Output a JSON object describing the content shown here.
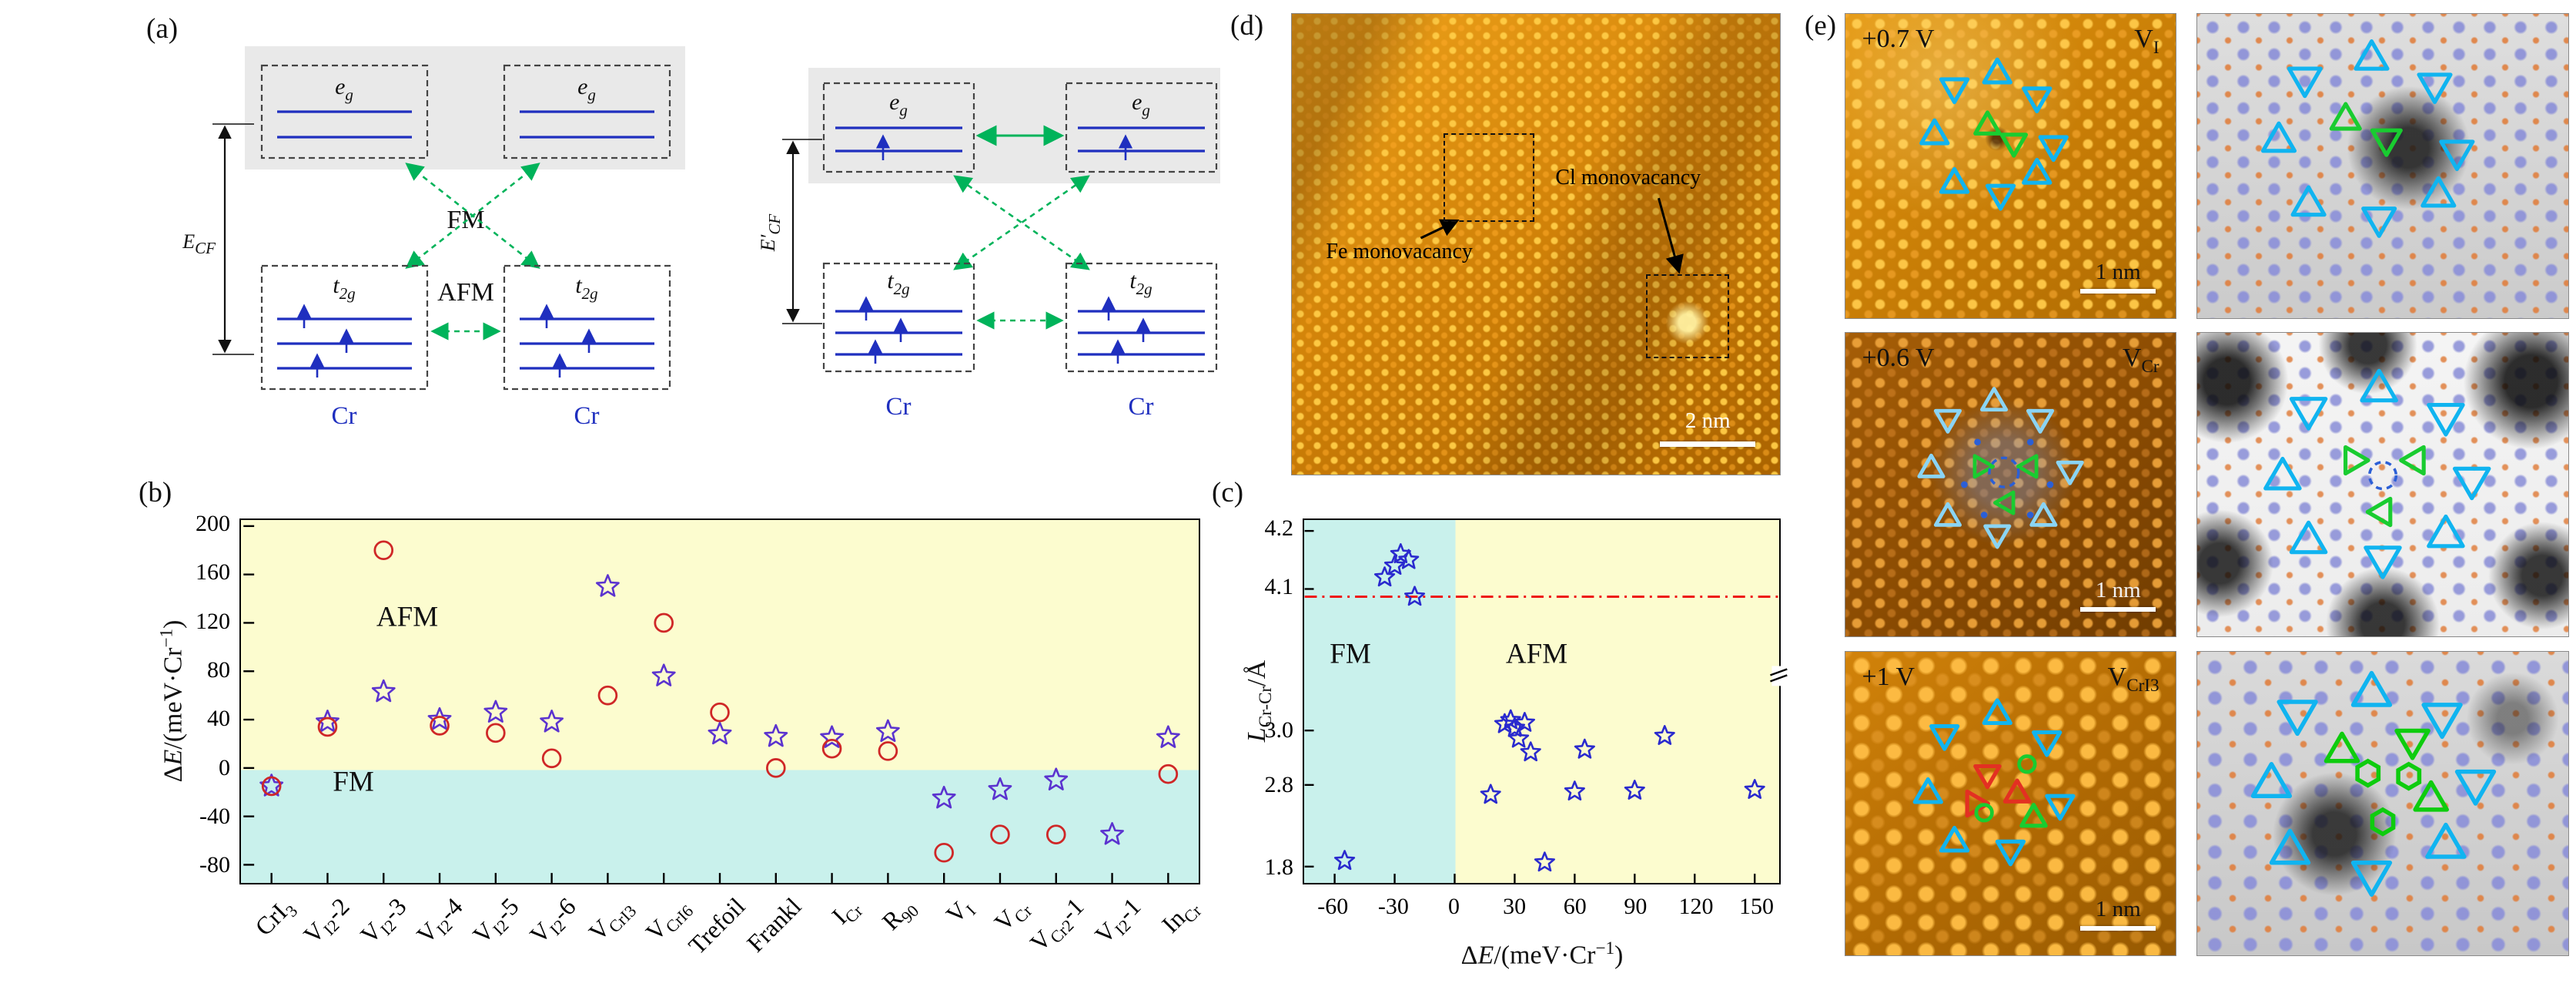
{
  "panel_labels": {
    "a": "(a)",
    "b": "(b)",
    "c": "(c)",
    "d": "(d)",
    "e": "(e)"
  },
  "panels": {
    "a": {
      "eg_base": "e",
      "eg_sub": "g",
      "t2g_base": "t",
      "t2g_sub": "2g",
      "ecf_base": "E",
      "ecf_sub": "CF",
      "ecf2_base": "E′",
      "ecf2_sub": "CF",
      "fm": "FM",
      "afm": "AFM",
      "cr": "Cr"
    },
    "d": {
      "fe_annotation": "Fe monovacancy",
      "cl_annotation": "Cl monovacancy",
      "scale_bar": "2 nm"
    },
    "e": {
      "rows": [
        {
          "bias": "+0.7 V",
          "defect_rich": "V~I~",
          "scale_label": "1 nm",
          "stm_markers": [
            {
              "color": "#10b4f0",
              "size": 5,
              "stroke": 1.3,
              "items": [
                [
                  "td",
                  33,
                  24
                ],
                [
                  "tu",
                  46,
                  20
                ],
                [
                  "td",
                  58,
                  27
                ],
                [
                  "tu",
                  27,
                  40
                ],
                [
                  "td",
                  63,
                  43
                ],
                [
                  "tu",
                  33,
                  56
                ],
                [
                  "td",
                  47,
                  59
                ],
                [
                  "tu",
                  58,
                  53
                ]
              ]
            },
            {
              "color": "#19cc30",
              "size": 4.6,
              "stroke": 1.3,
              "items": [
                [
                  "tu",
                  43,
                  37
                ],
                [
                  "td",
                  51,
                  42
                ]
              ]
            }
          ],
          "sim_markers": [
            {
              "color": "#10b4f0",
              "size": 6,
              "stroke": 1.3,
              "items": [
                [
                  "td",
                  29,
                  21
                ],
                [
                  "tu",
                  47,
                  15
                ],
                [
                  "td",
                  64,
                  23
                ],
                [
                  "tu",
                  22,
                  42
                ],
                [
                  "td",
                  70,
                  45
                ],
                [
                  "tu",
                  30,
                  63
                ],
                [
                  "td",
                  49,
                  67
                ],
                [
                  "tu",
                  65,
                  60
                ]
              ]
            },
            {
              "color": "#19cc30",
              "size": 5.4,
              "stroke": 1.3,
              "items": [
                [
                  "tu",
                  40,
                  35
                ],
                [
                  "td",
                  51,
                  41
                ]
              ]
            }
          ]
        },
        {
          "bias": "+0.6 V",
          "defect_rich": "V~Cr~",
          "scale_label": "1 nm",
          "stm_markers": [
            {
              "color": "#8ad4f4",
              "size": 4.6,
              "stroke": 1.2,
              "items": [
                [
                  "td",
                  31,
                  28
                ],
                [
                  "tu",
                  45,
                  23
                ],
                [
                  "td",
                  59,
                  28
                ],
                [
                  "tu",
                  26,
                  45
                ],
                [
                  "td",
                  68,
                  45
                ],
                [
                  "tu",
                  31,
                  61
                ],
                [
                  "td",
                  46,
                  66
                ],
                [
                  "tu",
                  60,
                  61
                ]
              ]
            },
            {
              "color": "#19cc30",
              "size": 4,
              "stroke": 1.2,
              "items": [
                [
                  "tr",
                  41,
                  44
                ],
                [
                  "tl",
                  56,
                  44
                ],
                [
                  "tl",
                  49,
                  56
                ]
              ]
            },
            {
              "color": "#2b5fd6",
              "size": 4.8,
              "stroke": 1.1,
              "items": [
                [
                  "dc",
                  48,
                  46
                ]
              ]
            },
            {
              "color": "#2b5fd6",
              "size": 1.1,
              "stroke": 1,
              "items": [
                [
                  "dot",
                  40,
                  36
                ],
                [
                  "dot",
                  56,
                  36
                ],
                [
                  "dot",
                  36,
                  50
                ],
                [
                  "dot",
                  62,
                  50
                ],
                [
                  "dot",
                  42,
                  60
                ],
                [
                  "dot",
                  56,
                  60
                ]
              ]
            }
          ],
          "sim_markers": [
            {
              "color": "#10b4f0",
              "size": 6.5,
              "stroke": 1.3,
              "items": [
                [
                  "td",
                  30,
                  25
                ],
                [
                  "tu",
                  49,
                  19
                ],
                [
                  "td",
                  67,
                  27
                ],
                [
                  "tu",
                  23,
                  48
                ],
                [
                  "td",
                  74,
                  48
                ],
                [
                  "tu",
                  30,
                  69
                ],
                [
                  "td",
                  50,
                  74
                ],
                [
                  "tu",
                  67,
                  67
                ]
              ]
            },
            {
              "color": "#19cc30",
              "size": 5,
              "stroke": 1.3,
              "items": [
                [
                  "tr",
                  42,
                  42
                ],
                [
                  "tl",
                  59,
                  42
                ],
                [
                  "tl",
                  50,
                  59
                ]
              ]
            },
            {
              "color": "#2b5fd6",
              "size": 4.4,
              "stroke": 1.1,
              "items": [
                [
                  "dc",
                  50,
                  47
                ]
              ]
            }
          ]
        },
        {
          "bias": "+1 V",
          "defect_rich": "V~CrI3~",
          "scale_label": "1 nm",
          "stm_markers": [
            {
              "color": "#10b4f0",
              "size": 5,
              "stroke": 1.3,
              "items": [
                [
                  "td",
                  30,
                  27
                ],
                [
                  "tu",
                  46,
                  21
                ],
                [
                  "td",
                  61,
                  29
                ],
                [
                  "tu",
                  25,
                  47
                ],
                [
                  "td",
                  65,
                  50
                ],
                [
                  "tu",
                  33,
                  63
                ],
                [
                  "td",
                  50,
                  65
                ]
              ]
            },
            {
              "color": "#e33022",
              "size": 4.6,
              "stroke": 1.3,
              "items": [
                [
                  "td",
                  43,
                  40
                ],
                [
                  "tu",
                  52,
                  47
                ],
                [
                  "tr",
                  39,
                  50
                ]
              ]
            },
            {
              "color": "#19cc30",
              "size": 2.6,
              "stroke": 1.2,
              "items": [
                [
                  "c",
                  42,
                  53
                ],
                [
                  "c",
                  55,
                  37
                ]
              ]
            },
            {
              "color": "#19cc30",
              "size": 4.6,
              "stroke": 1.3,
              "items": [
                [
                  "tu",
                  57,
                  55
                ]
              ]
            }
          ],
          "sim_markers": [
            {
              "color": "#10b4f0",
              "size": 7,
              "stroke": 1.4,
              "items": [
                [
                  "td",
                  27,
                  20
                ],
                [
                  "tu",
                  47,
                  14
                ],
                [
                  "td",
                  66,
                  21
                ],
                [
                  "tu",
                  20,
                  44
                ],
                [
                  "td",
                  75,
                  43
                ],
                [
                  "tu",
                  25,
                  66
                ],
                [
                  "td",
                  47,
                  73
                ],
                [
                  "tu",
                  67,
                  64
                ]
              ]
            },
            {
              "color": "#0ecc0e",
              "size": 6,
              "stroke": 1.4,
              "items": [
                [
                  "tu",
                  39,
                  33
                ],
                [
                  "td",
                  58,
                  29
                ],
                [
                  "tu",
                  63,
                  49
                ]
              ]
            },
            {
              "color": "#0ecc0e",
              "size": 4,
              "stroke": 1.4,
              "items": [
                [
                  "hex",
                  46,
                  40
                ],
                [
                  "hex",
                  57,
                  41
                ],
                [
                  "hex",
                  50,
                  56
                ]
              ]
            }
          ]
        }
      ]
    }
  },
  "chart_data": [
    {
      "id": "b",
      "type": "scatter",
      "ylabel_rich": "Δ*E*/(meV·Cr^−1^)",
      "ylim": [
        -95,
        205
      ],
      "yticks": [
        -80,
        -40,
        0,
        40,
        80,
        120,
        160,
        200
      ],
      "region_afm": "AFM",
      "region_fm": "FM",
      "bg_afm": "#fcfccf",
      "bg_fm": "#c9f1ec",
      "categories_rich": [
        "CrI~3~",
        "V~I2~-2",
        "V~I2~-3",
        "V~I2~-4",
        "V~I2~-5",
        "V~I2~-6",
        "V~CrI3~",
        "V~CrI6~",
        "Trefoil",
        "Frankl",
        "I~Cr~",
        "R~90~",
        "V~I~",
        "V~Cr~",
        "V~Cr2~-1",
        "V~I2~-1",
        "In~Cr~"
      ],
      "series": [
        {
          "marker": "star",
          "color": "#5b33cf",
          "values": [
            -15,
            38,
            63,
            40,
            46,
            38,
            150,
            76,
            28,
            26,
            25,
            30,
            -25,
            -18,
            -10,
            -55,
            25
          ]
        },
        {
          "marker": "circle",
          "color": "#cf2727",
          "values": [
            -15,
            34,
            180,
            35,
            29,
            8,
            60,
            120,
            46,
            0,
            16,
            14,
            -70,
            -55,
            -55,
            null,
            -5
          ]
        }
      ]
    },
    {
      "id": "c",
      "type": "scatter",
      "xlabel_rich": "Δ*E*/(meV·Cr^−1^)",
      "ylabel_rich": "*L*~Cr-Cr~/Å",
      "xlim": [
        -75,
        162
      ],
      "xticks": [
        -60,
        -30,
        0,
        30,
        60,
        90,
        120,
        150
      ],
      "yticks": [
        1.8,
        2.8,
        3.0,
        4.1,
        4.2
      ],
      "y_axis_break": true,
      "y_anchors": [
        [
          4.2,
          0.03
        ],
        [
          4.1,
          0.19
        ],
        [
          3.0,
          0.58
        ],
        [
          2.8,
          0.73
        ],
        [
          1.8,
          0.955
        ]
      ],
      "ref_line_y": 4.04,
      "ref_line_color": "#ee1616",
      "region_afm": "AFM",
      "region_fm": "FM",
      "bg_afm": "#fcfccf",
      "bg_fm": "#c9f1ec",
      "marker": "star",
      "marker_color": "#2a2ace",
      "points": [
        [
          -55,
          1.87
        ],
        [
          -35,
          4.12
        ],
        [
          -30,
          4.14
        ],
        [
          -27,
          4.16
        ],
        [
          -23,
          4.15
        ],
        [
          -20,
          4.04
        ],
        [
          18,
          2.68
        ],
        [
          25,
          3.05
        ],
        [
          28,
          3.08
        ],
        [
          30,
          3.02
        ],
        [
          32,
          2.97
        ],
        [
          35,
          3.06
        ],
        [
          38,
          2.92
        ],
        [
          45,
          1.85
        ],
        [
          60,
          2.72
        ],
        [
          65,
          2.93
        ],
        [
          90,
          2.73
        ],
        [
          105,
          2.98
        ],
        [
          150,
          2.74
        ]
      ]
    }
  ]
}
